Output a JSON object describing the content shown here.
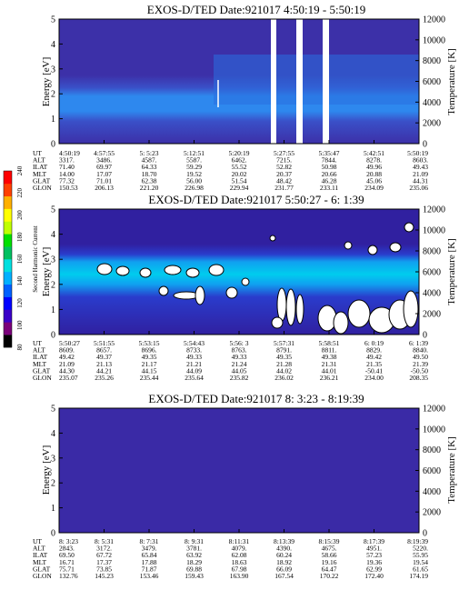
{
  "colorbar": {
    "label": "Second Harmonic Current",
    "ticks": [
      "80",
      "100",
      "120",
      "140",
      "160",
      "180",
      "200",
      "220",
      "240"
    ],
    "colors": [
      "#000000",
      "#7a007a",
      "#3a00c8",
      "#0000ff",
      "#0060ff",
      "#00b0ff",
      "#00e0e0",
      "#00c060",
      "#00e000",
      "#c0ff00",
      "#ffff00",
      "#ffb000",
      "#ff4000",
      "#ff0000"
    ]
  },
  "panels": [
    {
      "title": "EXOS-D/TED   Date:921017  4:50:19 - 5:50:19",
      "ylabel": "Energy [eV]",
      "y2label": "Temperature [K]",
      "yticks": [
        "0",
        "1",
        "2",
        "3",
        "4",
        "5"
      ],
      "y2ticks": [
        "0",
        "2000",
        "4000",
        "6000",
        "8000",
        "10000",
        "12000"
      ],
      "table": {
        "labels": [
          "UT",
          "ALT",
          "ILAT",
          "MLT",
          "GLAT",
          "GLON"
        ],
        "columns": [
          [
            "4:50:19",
            "3317.",
            "71.40",
            "14.00",
            "77.32",
            "150.53"
          ],
          [
            "4:57:55",
            "3486.",
            "69.97",
            "17.07",
            "71.01",
            "206.13"
          ],
          [
            "5: 5:23",
            "4587.",
            "64.33",
            "18.70",
            "62.38",
            "221.20"
          ],
          [
            "5:12:51",
            "5587.",
            "59.29",
            "19.52",
            "56.00",
            "226.98"
          ],
          [
            "5:20:19",
            "6462.",
            "55.52",
            "20.02",
            "51.54",
            "229.94"
          ],
          [
            "5:27:55",
            "7215.",
            "52.82",
            "20.37",
            "48.42",
            "231.77"
          ],
          [
            "5:35:47",
            "7844.",
            "50.98",
            "20.66",
            "46.28",
            "233.11"
          ],
          [
            "5:42:51",
            "8278.",
            "49.96",
            "20.88",
            "45.06",
            "234.09"
          ],
          [
            "5:50:19",
            "8603.",
            "49.43",
            "21.09",
            "44.31",
            "235.06"
          ]
        ]
      }
    },
    {
      "title": "EXOS-D/TED   Date:921017  5:50:27 - 6: 1:39",
      "ylabel": "Energy [eV]",
      "y2label": "Temperature [K]",
      "yticks": [
        "0",
        "1",
        "2",
        "3",
        "4",
        "5"
      ],
      "y2ticks": [
        "0",
        "2000",
        "4000",
        "6000",
        "8000",
        "10000",
        "12000"
      ],
      "table": {
        "labels": [
          "UT",
          "ALT",
          "ILAT",
          "MLT",
          "GLAT",
          "GLON"
        ],
        "columns": [
          [
            "5:50:27",
            "8609.",
            "49.42",
            "21.09",
            "44.30",
            "235.07"
          ],
          [
            "5:51:55",
            "8657.",
            "49.37",
            "21.13",
            "44.21",
            "235.26"
          ],
          [
            "5:53:15",
            "8696.",
            "49.35",
            "21.17",
            "44.15",
            "235.44"
          ],
          [
            "5:54:43",
            "8733.",
            "49.33",
            "21.21",
            "44.09",
            "235.64"
          ],
          [
            "5:56: 3",
            "8763.",
            "49.33",
            "21.24",
            "44.05",
            "235.82"
          ],
          [
            "5:57:31",
            "8791.",
            "49.35",
            "21.28",
            "44.02",
            "236.02"
          ],
          [
            "5:58:51",
            "8811.",
            "49.38",
            "21.31",
            "44.01",
            "236.21"
          ],
          [
            "6: 0:19",
            "8829.",
            "49.42",
            "21.35",
            "-50.41",
            "234.00"
          ],
          [
            "6: 1:39",
            "8840.",
            "49.50",
            "21.39",
            "-50.50",
            "208.35"
          ]
        ]
      }
    },
    {
      "title": "EXOS-D/TED   Date:921017  8: 3:23 - 8:19:39",
      "ylabel": "Energy [eV]",
      "y2label": "Temperature [K]",
      "yticks": [
        "0",
        "1",
        "2",
        "3",
        "4",
        "5"
      ],
      "y2ticks": [
        "0",
        "2000",
        "4000",
        "6000",
        "8000",
        "10000",
        "12000"
      ],
      "table": {
        "labels": [
          "UT",
          "ALT",
          "ILAT",
          "MLT",
          "GLAT",
          "GLON"
        ],
        "columns": [
          [
            "8: 3:23",
            "2843.",
            "69.50",
            "16.71",
            "75.71",
            "132.76"
          ],
          [
            "8: 5:31",
            "3172.",
            "67.72",
            "17.37",
            "73.85",
            "145.23"
          ],
          [
            "8: 7:31",
            "3479.",
            "65.84",
            "17.88",
            "71.87",
            "153.46"
          ],
          [
            "8: 9:31",
            "3781.",
            "63.92",
            "18.29",
            "69.88",
            "159.43"
          ],
          [
            "8:11:31",
            "4079.",
            "62.08",
            "18.63",
            "67.98",
            "163.90"
          ],
          [
            "8:13:39",
            "4390.",
            "60.24",
            "18.92",
            "66.09",
            "167.54"
          ],
          [
            "8:15:39",
            "4675.",
            "58.66",
            "19.16",
            "64.47",
            "170.22"
          ],
          [
            "8:17:39",
            "4951.",
            "57.23",
            "19.36",
            "62.99",
            "172.40"
          ],
          [
            "8:19:39",
            "5220.",
            "55.95",
            "19.54",
            "61.65",
            "174.19"
          ]
        ]
      }
    }
  ]
}
